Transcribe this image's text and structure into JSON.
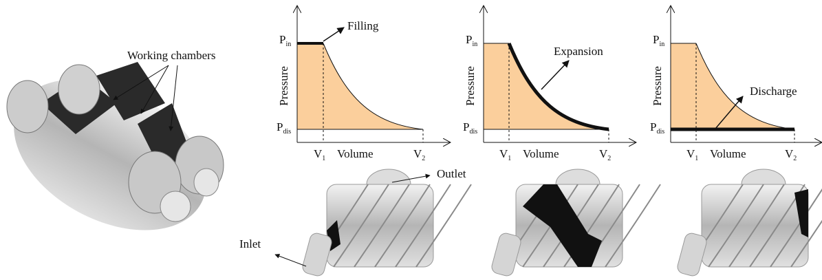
{
  "photo_label": "Working chambers",
  "diagrams": [
    {
      "phase": "Filling",
      "y_label": "Pressure",
      "x_label": "Volume",
      "p_in": {
        "symbol": "P",
        "subscript": "in"
      },
      "p_dis": {
        "symbol": "P",
        "subscript": "dis"
      },
      "v1": {
        "symbol": "V",
        "subscript": "1"
      },
      "v2": {
        "symbol": "V",
        "subscript": "2"
      }
    },
    {
      "phase": "Expansion",
      "y_label": "Pressure",
      "x_label": "Volume",
      "p_in": {
        "symbol": "P",
        "subscript": "in"
      },
      "p_dis": {
        "symbol": "P",
        "subscript": "dis"
      },
      "v1": {
        "symbol": "V",
        "subscript": "1"
      },
      "v2": {
        "symbol": "V",
        "subscript": "2"
      }
    },
    {
      "phase": "Discharge",
      "y_label": "Pressure",
      "x_label": "Volume",
      "p_in": {
        "symbol": "P",
        "subscript": "in"
      },
      "p_dis": {
        "symbol": "P",
        "subscript": "dis"
      },
      "v1": {
        "symbol": "V",
        "subscript": "1"
      },
      "v2": {
        "symbol": "V",
        "subscript": "2"
      }
    }
  ],
  "ports": {
    "outlet": "Outlet",
    "inlet": "Inlet"
  }
}
